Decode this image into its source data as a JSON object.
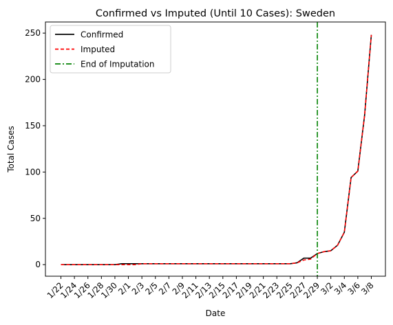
{
  "chart_data": {
    "type": "line",
    "title": "Confirmed vs Imputed (Until 10 Cases): Sweden",
    "xlabel": "Date",
    "ylabel": "Total Cases",
    "ylim": [
      -12.5,
      262
    ],
    "yticks": [
      0,
      50,
      100,
      150,
      200,
      250
    ],
    "grid": false,
    "legend_position": "top-left",
    "x": [
      "1/22",
      "1/23",
      "1/24",
      "1/25",
      "1/26",
      "1/27",
      "1/28",
      "1/29",
      "1/30",
      "1/31",
      "2/1",
      "2/2",
      "2/3",
      "2/4",
      "2/5",
      "2/6",
      "2/7",
      "2/8",
      "2/9",
      "2/10",
      "2/11",
      "2/12",
      "2/13",
      "2/14",
      "2/15",
      "2/16",
      "2/17",
      "2/18",
      "2/19",
      "2/20",
      "2/21",
      "2/22",
      "2/23",
      "2/24",
      "2/25",
      "2/26",
      "2/27",
      "2/28",
      "2/29",
      "3/1",
      "3/2",
      "3/3",
      "3/4",
      "3/5",
      "3/6",
      "3/7",
      "3/8"
    ],
    "xtick_labels": [
      "1/22",
      "1/24",
      "1/26",
      "1/28",
      "1/30",
      "2/1",
      "2/3",
      "2/5",
      "2/7",
      "2/9",
      "2/11",
      "2/13",
      "2/15",
      "2/17",
      "2/19",
      "2/21",
      "2/23",
      "2/25",
      "2/27",
      "2/29",
      "3/2",
      "3/4",
      "3/6",
      "3/8"
    ],
    "series": [
      {
        "name": "Confirmed",
        "color": "#000000",
        "style": "solid",
        "values": [
          0,
          0,
          0,
          0,
          0,
          0,
          0,
          0,
          0,
          1,
          1,
          1,
          1,
          1,
          1,
          1,
          1,
          1,
          1,
          1,
          1,
          1,
          1,
          1,
          1,
          1,
          1,
          1,
          1,
          1,
          1,
          1,
          1,
          1,
          1,
          2,
          7,
          7,
          12,
          14,
          15,
          21,
          35,
          94,
          101,
          161,
          248
        ]
      },
      {
        "name": "Imputed",
        "color": "#ff0000",
        "style": "dashed",
        "values": [
          0,
          0,
          0,
          0,
          0,
          0,
          0,
          0,
          0,
          0,
          0,
          0,
          1,
          1,
          1,
          1,
          1,
          1,
          1,
          1,
          1,
          1,
          1,
          1,
          1,
          1,
          1,
          1,
          1,
          1,
          1,
          1,
          1,
          1,
          1,
          2,
          5,
          6,
          12,
          14,
          15,
          21,
          35,
          94,
          101,
          161,
          248
        ]
      }
    ],
    "vlines": [
      {
        "name": "End of Imputation",
        "x": "2/29",
        "color": "#008000",
        "style": "dashdot"
      }
    ]
  }
}
